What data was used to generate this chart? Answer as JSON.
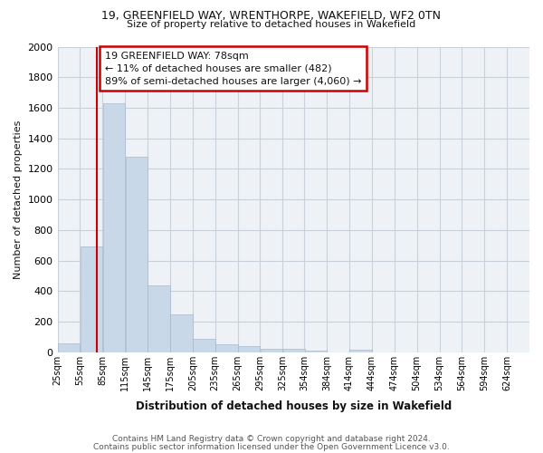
{
  "title1": "19, GREENFIELD WAY, WRENTHORPE, WAKEFIELD, WF2 0TN",
  "title2": "Size of property relative to detached houses in Wakefield",
  "xlabel": "Distribution of detached houses by size in Wakefield",
  "ylabel": "Number of detached properties",
  "bins": [
    25,
    55,
    85,
    115,
    145,
    175,
    205,
    235,
    265,
    295,
    325,
    354,
    384,
    414,
    444,
    474,
    504,
    534,
    564,
    594,
    624
  ],
  "counts": [
    60,
    690,
    1630,
    1280,
    440,
    250,
    85,
    50,
    40,
    25,
    20,
    10,
    0,
    15,
    0,
    0,
    0,
    0,
    0,
    0,
    0
  ],
  "bar_color": "#c8d8e8",
  "bar_edge_color": "#a8b8cc",
  "property_size": 78,
  "property_line_color": "#cc0000",
  "annotation_line1": "19 GREENFIELD WAY: 78sqm",
  "annotation_line2": "← 11% of detached houses are smaller (482)",
  "annotation_line3": "89% of semi-detached houses are larger (4,060) →",
  "annotation_box_color": "#cc0000",
  "ylim": [
    0,
    2000
  ],
  "yticks": [
    0,
    200,
    400,
    600,
    800,
    1000,
    1200,
    1400,
    1600,
    1800,
    2000
  ],
  "footer1": "Contains HM Land Registry data © Crown copyright and database right 2024.",
  "footer2": "Contains public sector information licensed under the Open Government Licence v3.0.",
  "bg_color": "#eef2f7",
  "grid_color": "#c8d0da",
  "fig_bg": "#ffffff"
}
